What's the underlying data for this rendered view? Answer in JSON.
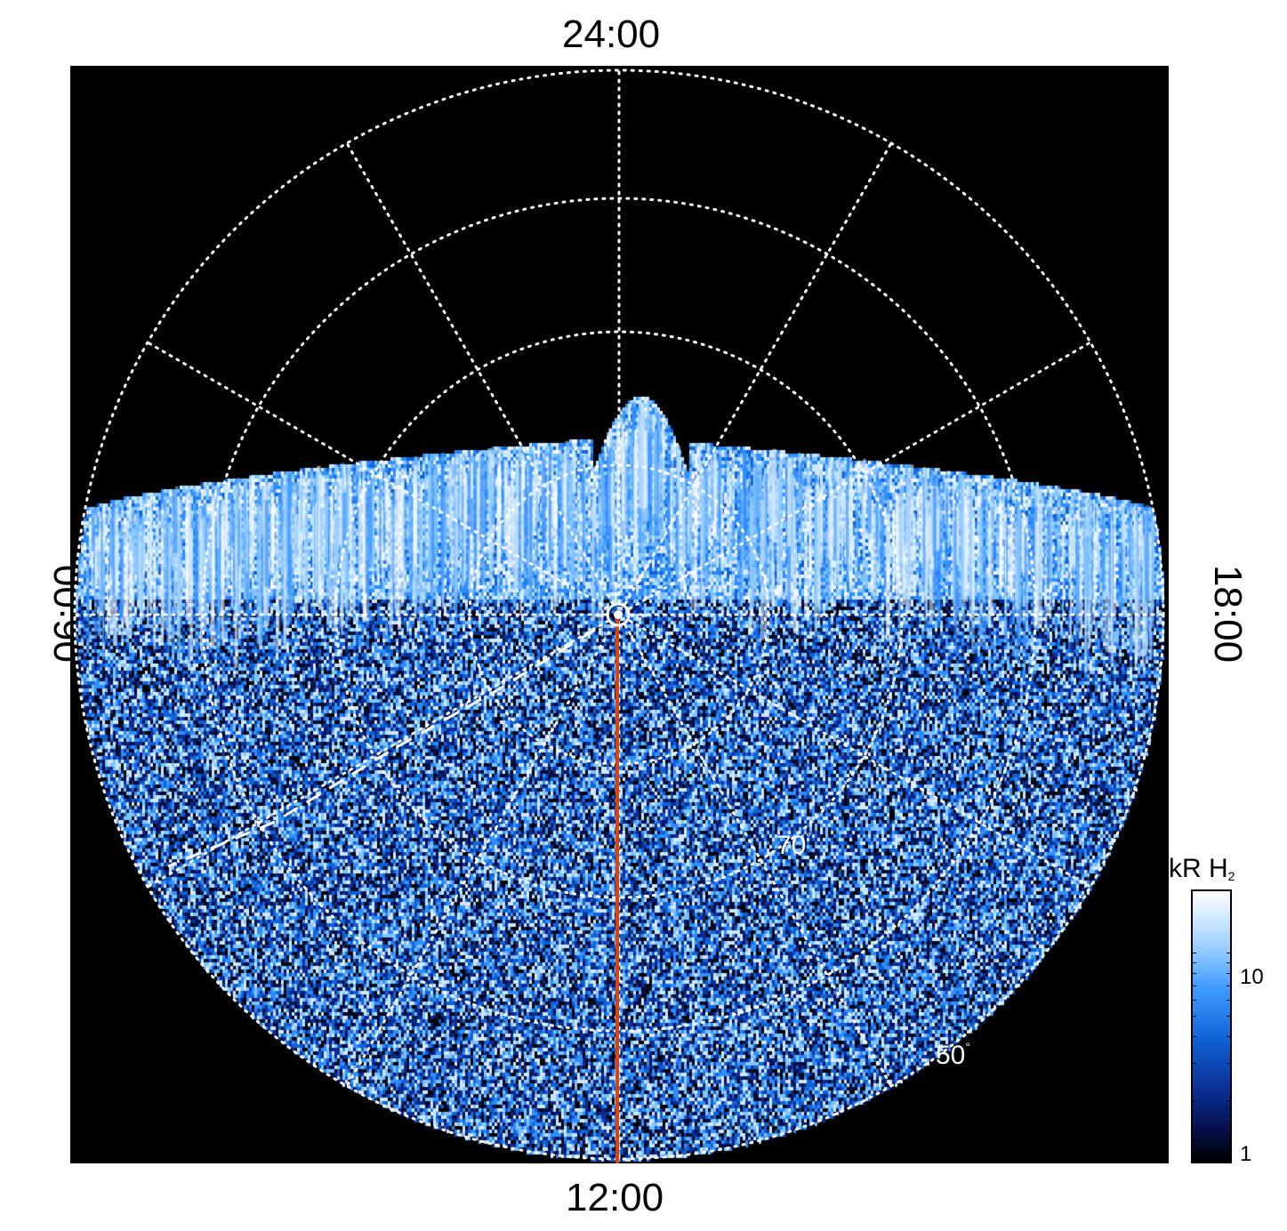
{
  "local_time_labels": {
    "top": "24:00",
    "bottom": "12:00",
    "left": "06:00",
    "right": "18:00"
  },
  "latitude_labels": {
    "inner": "70",
    "outer": "50",
    "degree_symbol": "°"
  },
  "colorbar": {
    "title_main": "kR H",
    "title_sub": "2",
    "ticks": [
      "10",
      "1"
    ],
    "scale": "log"
  },
  "colors": {
    "background": "#000000",
    "emission_bright": "#ffffff",
    "emission_mid": "#2f8dff",
    "emission_dim": "#0a1f7a",
    "grid": "#ffffff",
    "meridian_line": "#d9430f"
  }
}
